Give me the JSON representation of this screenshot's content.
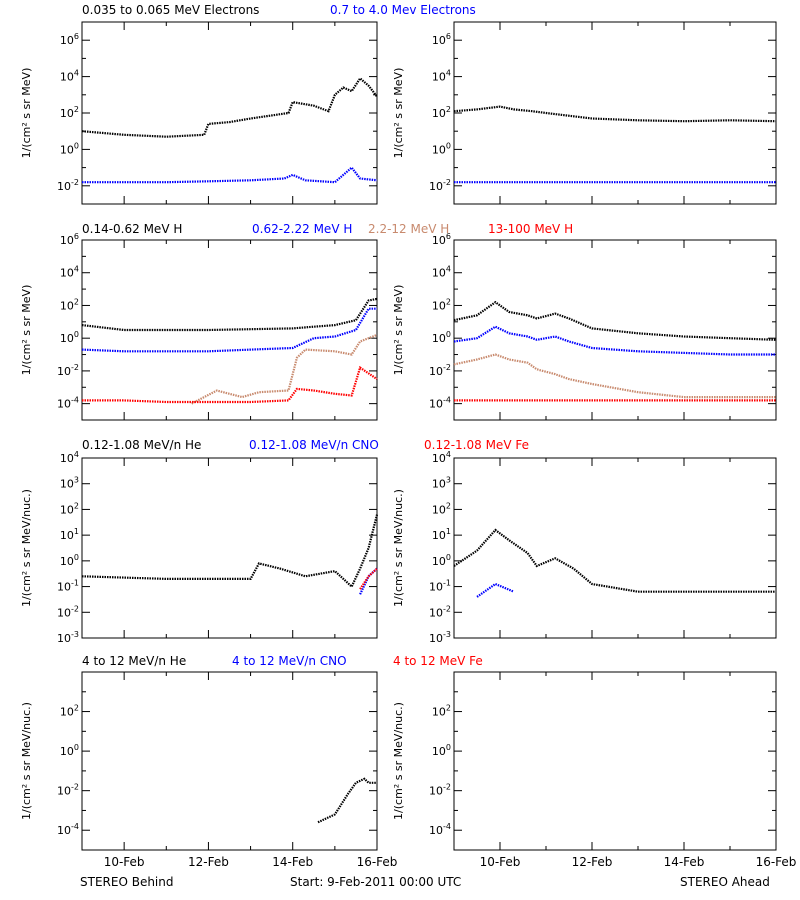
{
  "colors": {
    "black": "#000000",
    "blue": "#0000ff",
    "tan": "#c88a6e",
    "red": "#ff0000"
  },
  "footer": {
    "left": "STEREO Behind",
    "center": "Start:  9-Feb-2011 00:00 UTC",
    "right": "STEREO Ahead"
  },
  "row_titles": [
    [
      {
        "text": "0.035 to 0.065 MeV Electrons",
        "color": "black"
      },
      {
        "text": "0.7 to 4.0 Mev Electrons",
        "color": "blue"
      }
    ],
    [
      {
        "text": "0.14-0.62 MeV H",
        "color": "black"
      },
      {
        "text": "0.62-2.22 MeV H",
        "color": "blue"
      },
      {
        "text": "2.2-12 MeV H",
        "color": "tan"
      },
      {
        "text": "13-100 MeV H",
        "color": "red"
      }
    ],
    [
      {
        "text": "0.12-1.08 MeV/n He",
        "color": "black"
      },
      {
        "text": "0.12-1.08 MeV/n CNO",
        "color": "blue"
      },
      {
        "text": "0.12-1.08 MeV Fe",
        "color": "red"
      }
    ],
    [
      {
        "text": "4 to 12 MeV/n He",
        "color": "black"
      },
      {
        "text": "4 to 12 MeV/n CNO",
        "color": "blue"
      },
      {
        "text": "4 to 12 MeV Fe",
        "color": "red"
      }
    ]
  ],
  "chart_data": [
    {
      "type": "scatter",
      "panel": "electrons-behind",
      "log_y": true,
      "ylabel": "1/(cm² s sr MeV)",
      "ylim_exp": [
        -3,
        7
      ],
      "xlim_day": [
        9,
        16
      ],
      "yticks": [
        "10^-2",
        "10^0",
        "10^2",
        "10^4",
        "10^6"
      ],
      "series": [
        {
          "color": "black",
          "points": [
            [
              9,
              1.0
            ],
            [
              10,
              0.8
            ],
            [
              11,
              0.7
            ],
            [
              11.9,
              0.8
            ],
            [
              12,
              1.4
            ],
            [
              12.5,
              1.5
            ],
            [
              13,
              1.7
            ],
            [
              13.9,
              2.0
            ],
            [
              14,
              2.6
            ],
            [
              14.5,
              2.4
            ],
            [
              14.85,
              2.1
            ],
            [
              15,
              3.0
            ],
            [
              15.2,
              3.4
            ],
            [
              15.4,
              3.2
            ],
            [
              15.6,
              3.9
            ],
            [
              15.8,
              3.5
            ],
            [
              16,
              2.9
            ]
          ]
        },
        {
          "color": "blue",
          "points": [
            [
              9,
              -1.8
            ],
            [
              11,
              -1.8
            ],
            [
              12,
              -1.75
            ],
            [
              13,
              -1.7
            ],
            [
              13.8,
              -1.6
            ],
            [
              14,
              -1.4
            ],
            [
              14.3,
              -1.7
            ],
            [
              15,
              -1.8
            ],
            [
              15.4,
              -1.0
            ],
            [
              15.6,
              -1.6
            ],
            [
              16,
              -1.7
            ]
          ]
        }
      ]
    },
    {
      "type": "scatter",
      "panel": "electrons-ahead",
      "log_y": true,
      "ylabel": "1/(cm² s sr MeV)",
      "ylim_exp": [
        -3,
        7
      ],
      "xlim_day": [
        9,
        16
      ],
      "yticks": [
        "10^-2",
        "10^0",
        "10^2",
        "10^4",
        "10^6"
      ],
      "series": [
        {
          "color": "black",
          "points": [
            [
              9,
              2.1
            ],
            [
              9.5,
              2.2
            ],
            [
              10,
              2.35
            ],
            [
              10.3,
              2.2
            ],
            [
              10.7,
              2.1
            ],
            [
              11,
              2.0
            ],
            [
              12,
              1.7
            ],
            [
              13,
              1.6
            ],
            [
              14,
              1.55
            ],
            [
              15,
              1.6
            ],
            [
              16,
              1.55
            ]
          ]
        },
        {
          "color": "blue",
          "points": [
            [
              9,
              -1.8
            ],
            [
              10,
              -1.8
            ],
            [
              11,
              -1.8
            ],
            [
              12,
              -1.8
            ],
            [
              13,
              -1.8
            ],
            [
              14,
              -1.8
            ],
            [
              15,
              -1.8
            ],
            [
              16,
              -1.8
            ]
          ]
        }
      ]
    },
    {
      "type": "scatter",
      "panel": "protons-behind",
      "log_y": true,
      "ylabel": "1/(cm² s sr MeV)",
      "ylim_exp": [
        -5,
        6
      ],
      "xlim_day": [
        9,
        16
      ],
      "yticks": [
        "10^-4",
        "10^-2",
        "10^0",
        "10^2",
        "10^4",
        "10^6"
      ],
      "series": [
        {
          "color": "black",
          "points": [
            [
              9,
              0.8
            ],
            [
              10,
              0.5
            ],
            [
              11,
              0.5
            ],
            [
              12,
              0.5
            ],
            [
              13,
              0.55
            ],
            [
              14,
              0.6
            ],
            [
              14.5,
              0.7
            ],
            [
              15,
              0.8
            ],
            [
              15.5,
              1.1
            ],
            [
              15.8,
              2.3
            ],
            [
              16,
              2.4
            ]
          ]
        },
        {
          "color": "blue",
          "points": [
            [
              9,
              -0.7
            ],
            [
              10,
              -0.8
            ],
            [
              11,
              -0.8
            ],
            [
              12,
              -0.8
            ],
            [
              13,
              -0.7
            ],
            [
              14,
              -0.6
            ],
            [
              14.5,
              0.0
            ],
            [
              15,
              0.1
            ],
            [
              15.5,
              0.5
            ],
            [
              15.8,
              1.8
            ],
            [
              16,
              1.8
            ]
          ]
        },
        {
          "color": "tan",
          "points": [
            [
              11.6,
              -4.0
            ],
            [
              12.2,
              -3.2
            ],
            [
              12.8,
              -3.6
            ],
            [
              13.2,
              -3.3
            ],
            [
              13.9,
              -3.2
            ],
            [
              14.1,
              -1.2
            ],
            [
              14.3,
              -0.7
            ],
            [
              15,
              -0.8
            ],
            [
              15.4,
              -1.0
            ],
            [
              15.6,
              -0.2
            ],
            [
              16,
              0.2
            ]
          ]
        },
        {
          "color": "red",
          "points": [
            [
              9,
              -3.8
            ],
            [
              10,
              -3.8
            ],
            [
              11,
              -3.9
            ],
            [
              12,
              -3.9
            ],
            [
              13,
              -3.9
            ],
            [
              13.9,
              -3.8
            ],
            [
              14.1,
              -3.1
            ],
            [
              14.5,
              -3.2
            ],
            [
              15,
              -3.4
            ],
            [
              15.4,
              -3.5
            ],
            [
              15.6,
              -1.8
            ],
            [
              16,
              -2.5
            ]
          ]
        }
      ]
    },
    {
      "type": "scatter",
      "panel": "protons-ahead",
      "log_y": true,
      "ylabel": "1/(cm² s sr MeV)",
      "ylim_exp": [
        -5,
        6
      ],
      "xlim_day": [
        9,
        16
      ],
      "yticks": [
        "10^-4",
        "10^-2",
        "10^0",
        "10^2",
        "10^4",
        "10^6"
      ],
      "series": [
        {
          "color": "black",
          "points": [
            [
              9,
              1.1
            ],
            [
              9.5,
              1.4
            ],
            [
              9.9,
              2.2
            ],
            [
              10.2,
              1.6
            ],
            [
              10.6,
              1.4
            ],
            [
              10.8,
              1.2
            ],
            [
              11.2,
              1.5
            ],
            [
              11.5,
              1.2
            ],
            [
              12,
              0.6
            ],
            [
              13,
              0.3
            ],
            [
              14,
              0.1
            ],
            [
              15,
              0.0
            ],
            [
              16,
              -0.1
            ]
          ]
        },
        {
          "color": "blue",
          "points": [
            [
              9,
              -0.2
            ],
            [
              9.5,
              0.0
            ],
            [
              9.9,
              0.7
            ],
            [
              10.2,
              0.3
            ],
            [
              10.6,
              0.1
            ],
            [
              10.8,
              -0.1
            ],
            [
              11.2,
              0.1
            ],
            [
              11.5,
              -0.2
            ],
            [
              12,
              -0.6
            ],
            [
              13,
              -0.8
            ],
            [
              14,
              -0.9
            ],
            [
              15,
              -1.0
            ],
            [
              16,
              -1.0
            ]
          ]
        },
        {
          "color": "tan",
          "points": [
            [
              9,
              -1.6
            ],
            [
              9.5,
              -1.3
            ],
            [
              9.9,
              -1.0
            ],
            [
              10.2,
              -1.3
            ],
            [
              10.6,
              -1.5
            ],
            [
              10.8,
              -1.9
            ],
            [
              11.2,
              -2.2
            ],
            [
              11.5,
              -2.5
            ],
            [
              12,
              -2.8
            ],
            [
              13,
              -3.3
            ],
            [
              14,
              -3.6
            ],
            [
              15,
              -3.6
            ],
            [
              16,
              -3.6
            ]
          ]
        },
        {
          "color": "red",
          "points": [
            [
              9,
              -3.8
            ],
            [
              10,
              -3.8
            ],
            [
              11,
              -3.8
            ],
            [
              12,
              -3.8
            ],
            [
              13,
              -3.8
            ],
            [
              14,
              -3.8
            ],
            [
              15,
              -3.8
            ],
            [
              16,
              -3.8
            ]
          ]
        }
      ]
    },
    {
      "type": "scatter",
      "panel": "heavy-low-behind",
      "log_y": true,
      "ylabel": "1/(cm² s sr MeV/nuc.)",
      "ylim_exp": [
        -3,
        4
      ],
      "xlim_day": [
        9,
        16
      ],
      "yticks": [
        "10^-3",
        "10^-2",
        "10^-1",
        "10^0",
        "10^1",
        "10^2",
        "10^3",
        "10^4"
      ],
      "series": [
        {
          "color": "black",
          "points": [
            [
              9,
              -0.6
            ],
            [
              10,
              -0.65
            ],
            [
              11,
              -0.7
            ],
            [
              12,
              -0.7
            ],
            [
              13,
              -0.7
            ],
            [
              13.2,
              -0.1
            ],
            [
              13.7,
              -0.3
            ],
            [
              14.3,
              -0.6
            ],
            [
              15,
              -0.4
            ],
            [
              15.4,
              -1.0
            ],
            [
              15.6,
              -0.3
            ],
            [
              15.8,
              0.5
            ],
            [
              16,
              1.8
            ]
          ]
        },
        {
          "color": "blue",
          "points": [
            [
              15.6,
              -1.3
            ],
            [
              15.8,
              -0.6
            ],
            [
              16,
              -0.3
            ]
          ]
        },
        {
          "color": "red",
          "points": [
            [
              15.6,
              -1.1
            ],
            [
              15.8,
              -0.6
            ],
            [
              16,
              -0.3
            ]
          ]
        }
      ]
    },
    {
      "type": "scatter",
      "panel": "heavy-low-ahead",
      "log_y": true,
      "ylabel": "1/(cm² s sr MeV/nuc.)",
      "ylim_exp": [
        -3,
        4
      ],
      "xlim_day": [
        9,
        16
      ],
      "yticks": [
        "10^-3",
        "10^-2",
        "10^-1",
        "10^0",
        "10^1",
        "10^2",
        "10^3",
        "10^4"
      ],
      "series": [
        {
          "color": "black",
          "points": [
            [
              9,
              -0.2
            ],
            [
              9.5,
              0.4
            ],
            [
              9.9,
              1.2
            ],
            [
              10.2,
              0.8
            ],
            [
              10.6,
              0.3
            ],
            [
              10.8,
              -0.2
            ],
            [
              11.2,
              0.1
            ],
            [
              11.6,
              -0.3
            ],
            [
              12,
              -0.9
            ],
            [
              13,
              -1.2
            ],
            [
              14,
              -1.2
            ],
            [
              15,
              -1.2
            ],
            [
              16,
              -1.2
            ]
          ]
        },
        {
          "color": "blue",
          "points": [
            [
              9.5,
              -1.4
            ],
            [
              9.9,
              -0.9
            ],
            [
              10.3,
              -1.2
            ]
          ]
        }
      ]
    },
    {
      "type": "scatter",
      "panel": "heavy-high-behind",
      "log_y": true,
      "ylabel": "1/(cm² s sr MeV/nuc.)",
      "ylim_exp": [
        -5,
        4
      ],
      "xlim_day": [
        9,
        16
      ],
      "yticks": [
        "10^-4",
        "10^-2",
        "10^0",
        "10^2"
      ],
      "series": [
        {
          "color": "black",
          "points": [
            [
              14.6,
              -3.6
            ],
            [
              15,
              -3.2
            ],
            [
              15.3,
              -2.2
            ],
            [
              15.5,
              -1.6
            ],
            [
              15.7,
              -1.4
            ],
            [
              15.8,
              -1.6
            ],
            [
              16,
              -1.6
            ]
          ]
        }
      ]
    },
    {
      "type": "scatter",
      "panel": "heavy-high-ahead",
      "log_y": true,
      "ylabel": "1/(cm² s sr MeV/nuc.)",
      "ylim_exp": [
        -5,
        4
      ],
      "xlim_day": [
        9,
        16
      ],
      "yticks": [
        "10^-4",
        "10^-2",
        "10^0",
        "10^2"
      ],
      "series": []
    }
  ],
  "x_ticks": [
    "10-Feb",
    "12-Feb",
    "14-Feb",
    "16-Feb"
  ]
}
